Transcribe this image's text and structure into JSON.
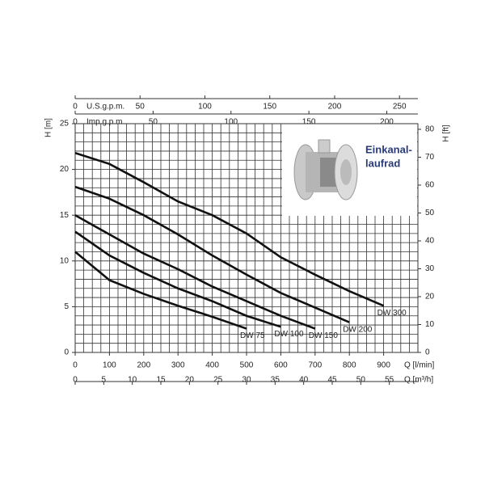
{
  "chart_data": {
    "type": "line",
    "x_label": "Q [l/min]",
    "y_label": "H [m]",
    "y2_label": "H [ft]",
    "xlim": [
      0,
      1000
    ],
    "xticks": [
      0,
      100,
      200,
      300,
      400,
      500,
      600,
      700,
      800,
      900
    ],
    "ylim": [
      0,
      25
    ],
    "yticks": [
      0,
      5,
      10,
      15,
      20,
      25
    ],
    "y2lim": [
      0,
      82.02
    ],
    "y2ticks": [
      0,
      10,
      20,
      30,
      40,
      50,
      60,
      70,
      80
    ],
    "secondary_x_axes": [
      {
        "label": "Q [m³/h]",
        "position": "bottom",
        "lim": [
          0,
          60
        ],
        "ticks": [
          0,
          5,
          10,
          15,
          20,
          25,
          30,
          35,
          40,
          45,
          50,
          55
        ]
      },
      {
        "label": "U.S.g.p.m.",
        "position": "top",
        "lim": [
          0,
          264.2
        ],
        "ticks": [
          0,
          50,
          100,
          150,
          200,
          250
        ]
      },
      {
        "label": "Imp.g.p.m.",
        "position": "top",
        "lim": [
          0,
          219.97
        ],
        "ticks": [
          0,
          50,
          100,
          150,
          200
        ]
      }
    ],
    "grid": true,
    "annotation": [
      "Einkanal-",
      "laufrad"
    ],
    "series": [
      {
        "name": "DW 300",
        "color": "#111111",
        "x": [
          0,
          100,
          200,
          300,
          400,
          500,
          600,
          700,
          800,
          900
        ],
        "values": [
          21.8,
          20.6,
          18.6,
          16.5,
          15.0,
          13.0,
          10.4,
          8.5,
          6.7,
          5.1
        ]
      },
      {
        "name": "DW 200",
        "color": "#111111",
        "x": [
          0,
          100,
          200,
          300,
          400,
          500,
          600,
          700,
          800
        ],
        "values": [
          18.1,
          16.8,
          15.0,
          12.9,
          10.6,
          8.5,
          6.5,
          4.9,
          3.3
        ]
      },
      {
        "name": "DW 150",
        "color": "#111111",
        "x": [
          0,
          100,
          200,
          300,
          400,
          500,
          600,
          700
        ],
        "values": [
          15.0,
          12.9,
          10.8,
          9.1,
          7.2,
          5.6,
          4.0,
          2.6
        ]
      },
      {
        "name": "DW 100",
        "color": "#111111",
        "x": [
          0,
          100,
          200,
          300,
          400,
          500,
          600
        ],
        "values": [
          13.2,
          10.6,
          8.7,
          7.0,
          5.6,
          4.0,
          2.8
        ]
      },
      {
        "name": "DW 75",
        "color": "#111111",
        "x": [
          0,
          100,
          200,
          300,
          400,
          500
        ],
        "values": [
          11.0,
          7.9,
          6.4,
          5.1,
          3.9,
          2.6
        ]
      }
    ]
  }
}
